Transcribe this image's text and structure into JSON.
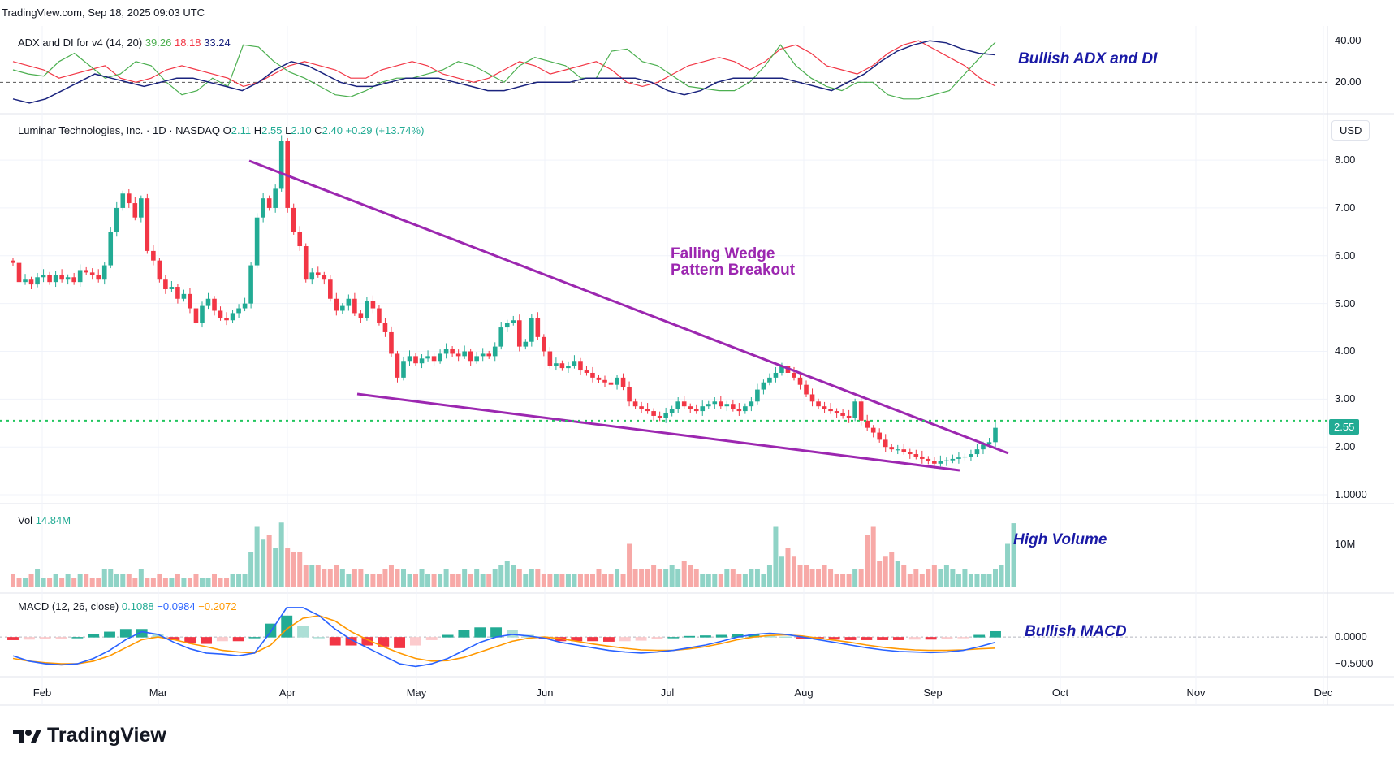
{
  "header": {
    "source_line": "TradingView.com, Sep 18, 2025 09:03 UTC"
  },
  "currency_button": "USD",
  "branding": {
    "logo_text": "TradingView"
  },
  "annotations": {
    "adx": "Bullish ADX and DI",
    "wedge_line1": "Falling Wedge",
    "wedge_line2": "Pattern Breakout",
    "volume": "High Volume",
    "macd": "Bullish MACD"
  },
  "legends": {
    "adx": {
      "label": "ADX and DI for v4 (14, 20)",
      "plus_di": "39.26",
      "minus_di": "18.18",
      "adx": "33.24"
    },
    "price": {
      "title": "Luminar Technologies, Inc. · 1D · NASDAQ",
      "open_label": "O",
      "open": "2.11",
      "high_label": "H",
      "high": "2.55",
      "low_label": "L",
      "low": "2.10",
      "close_label": "C",
      "close": "2.40",
      "change": "+0.29 (+13.74%)"
    },
    "volume": {
      "label": "Vol",
      "value": "14.84M"
    },
    "macd": {
      "label": "MACD (12, 26, close)",
      "histogram": "0.1088",
      "macd": "−0.0984",
      "signal": "−0.2072"
    }
  },
  "price_tag": "2.55",
  "colors": {
    "up": "#22ab94",
    "down": "#f23645",
    "wedge": "#9c27b0",
    "annotation": "#1a1aa6",
    "grid": "#f0f3fa"
  },
  "chart_data": [
    {
      "type": "candlestick",
      "pane": "price",
      "x_ticks": [
        "Feb",
        "Mar",
        "Apr",
        "May",
        "Jun",
        "Jul",
        "Aug",
        "Sep",
        "Oct",
        "Nov",
        "Dec"
      ],
      "y_ticks": [
        "8.00",
        "7.00",
        "6.00",
        "5.00",
        "4.00",
        "3.00",
        "2.00",
        "1.0000"
      ],
      "ylim": [
        0.95,
        8.8
      ],
      "xlim_days": [
        0,
        290
      ],
      "start_label": "Feb",
      "closes": [
        5.85,
        5.45,
        5.5,
        5.4,
        5.55,
        5.6,
        5.45,
        5.6,
        5.5,
        5.55,
        5.45,
        5.7,
        5.65,
        5.6,
        5.5,
        5.8,
        6.5,
        7.0,
        7.3,
        7.1,
        6.8,
        7.2,
        6.1,
        5.9,
        5.5,
        5.3,
        5.35,
        5.1,
        5.2,
        4.9,
        4.6,
        4.95,
        5.1,
        4.85,
        4.7,
        4.65,
        4.8,
        4.9,
        5.0,
        5.8,
        6.8,
        7.2,
        7.0,
        7.4,
        8.4,
        7.0,
        6.5,
        6.2,
        5.5,
        5.65,
        5.6,
        5.5,
        5.1,
        4.85,
        4.95,
        5.1,
        4.8,
        4.7,
        5.05,
        4.9,
        4.6,
        4.4,
        3.95,
        3.45,
        3.8,
        3.9,
        3.75,
        3.85,
        3.9,
        3.8,
        3.95,
        4.05,
        3.95,
        3.9,
        4.0,
        3.8,
        3.9,
        3.95,
        3.9,
        4.1,
        4.5,
        4.6,
        4.65,
        4.1,
        4.2,
        4.7,
        4.3,
        4.0,
        3.7,
        3.75,
        3.65,
        3.7,
        3.8,
        3.6,
        3.55,
        3.45,
        3.4,
        3.35,
        3.3,
        3.45,
        3.25,
        2.95,
        2.85,
        2.8,
        2.75,
        2.65,
        2.6,
        2.7,
        2.8,
        2.95,
        2.85,
        2.8,
        2.75,
        2.85,
        2.9,
        2.95,
        2.85,
        2.9,
        2.8,
        2.75,
        2.85,
        2.95,
        3.2,
        3.35,
        3.45,
        3.55,
        3.7,
        3.55,
        3.45,
        3.3,
        3.1,
        2.95,
        2.85,
        2.8,
        2.75,
        2.7,
        2.65,
        2.6,
        2.95,
        2.55,
        2.4,
        2.3,
        2.15,
        2.0,
        1.95,
        1.95,
        1.9,
        1.85,
        1.8,
        1.75,
        1.7,
        1.65,
        1.7,
        1.72,
        1.75,
        1.78,
        1.8,
        1.85,
        1.95,
        2.05,
        2.1,
        2.4
      ]
    },
    {
      "type": "bar",
      "pane": "volume",
      "y_ticks": [
        "10M"
      ],
      "values_m": [
        3,
        2,
        2,
        3,
        4,
        2,
        2,
        3,
        2,
        3,
        2,
        3,
        3,
        2,
        2,
        4,
        4,
        3,
        3,
        3,
        2,
        4,
        2,
        2,
        3,
        2,
        2,
        3,
        2,
        2,
        3,
        2,
        2,
        3,
        2,
        2,
        3,
        3,
        3,
        8,
        14,
        11,
        12,
        9,
        15,
        9,
        8,
        8,
        5,
        5,
        5,
        4,
        4,
        5,
        4,
        3,
        4,
        4,
        3,
        3,
        3,
        4,
        5,
        4,
        4,
        3,
        3,
        4,
        3,
        3,
        3,
        4,
        3,
        3,
        4,
        3,
        4,
        3,
        3,
        4,
        5,
        6,
        5,
        4,
        3,
        4,
        4,
        3,
        3,
        3,
        3,
        3,
        3,
        3,
        3,
        3,
        4,
        3,
        3,
        4,
        3,
        10,
        4,
        4,
        4,
        5,
        4,
        4,
        5,
        4,
        6,
        5,
        4,
        3,
        3,
        3,
        3,
        4,
        4,
        3,
        3,
        4,
        4,
        3,
        5,
        14,
        7,
        9,
        7,
        5,
        5,
        4,
        4,
        5,
        4,
        3,
        3,
        3,
        4,
        4,
        12,
        14,
        6,
        7,
        8,
        6,
        5,
        3,
        4,
        3,
        4,
        5,
        4,
        5,
        4,
        3,
        4,
        3,
        3,
        3,
        3,
        4,
        5,
        10,
        14.84
      ]
    },
    {
      "type": "histogram+line",
      "pane": "macd",
      "y_ticks": [
        "0.0000",
        "−0.5000"
      ],
      "macd_series": [
        -0.35,
        -0.45,
        -0.5,
        -0.52,
        -0.5,
        -0.4,
        -0.25,
        -0.05,
        0.1,
        0.05,
        -0.1,
        -0.22,
        -0.3,
        -0.32,
        -0.35,
        -0.3,
        0.1,
        0.55,
        0.55,
        0.4,
        0.15,
        -0.05,
        -0.2,
        -0.35,
        -0.5,
        -0.55,
        -0.5,
        -0.4,
        -0.25,
        -0.1,
        0.0,
        0.05,
        0.02,
        -0.02,
        -0.1,
        -0.15,
        -0.2,
        -0.25,
        -0.28,
        -0.3,
        -0.28,
        -0.25,
        -0.2,
        -0.15,
        -0.08,
        0.0,
        0.05,
        0.07,
        0.05,
        0.0,
        -0.05,
        -0.1,
        -0.15,
        -0.2,
        -0.24,
        -0.27,
        -0.28,
        -0.29,
        -0.28,
        -0.25,
        -0.18,
        -0.1
      ],
      "signal_series": [
        -0.4,
        -0.45,
        -0.48,
        -0.5,
        -0.5,
        -0.45,
        -0.35,
        -0.2,
        -0.05,
        0.0,
        -0.05,
        -0.12,
        -0.18,
        -0.25,
        -0.28,
        -0.3,
        -0.15,
        0.15,
        0.35,
        0.4,
        0.3,
        0.1,
        -0.05,
        -0.18,
        -0.3,
        -0.4,
        -0.45,
        -0.44,
        -0.38,
        -0.28,
        -0.18,
        -0.08,
        -0.02,
        0.0,
        -0.03,
        -0.08,
        -0.13,
        -0.17,
        -0.21,
        -0.24,
        -0.25,
        -0.25,
        -0.22,
        -0.18,
        -0.12,
        -0.05,
        0.0,
        0.03,
        0.04,
        0.02,
        -0.02,
        -0.06,
        -0.1,
        -0.15,
        -0.19,
        -0.22,
        -0.24,
        -0.25,
        -0.25,
        -0.24,
        -0.22,
        -0.2072
      ],
      "histogram_series": [
        -0.05,
        -0.04,
        -0.03,
        -0.02,
        0.0,
        0.05,
        0.1,
        0.15,
        0.15,
        0.05,
        -0.05,
        -0.1,
        -0.12,
        -0.07,
        -0.07,
        0.0,
        0.25,
        0.4,
        0.2,
        0.0,
        -0.15,
        -0.15,
        -0.15,
        -0.17,
        -0.2,
        -0.15,
        -0.05,
        0.04,
        0.13,
        0.18,
        0.18,
        0.13,
        0.04,
        -0.02,
        -0.07,
        -0.07,
        -0.07,
        -0.08,
        -0.07,
        -0.06,
        -0.03,
        0.0,
        0.02,
        0.03,
        0.04,
        0.05,
        0.05,
        0.04,
        0.01,
        -0.02,
        -0.03,
        -0.04,
        -0.05,
        -0.05,
        -0.05,
        -0.05,
        -0.04,
        -0.04,
        -0.03,
        -0.01,
        0.04,
        0.1088
      ]
    },
    {
      "type": "line",
      "pane": "adx",
      "y_ticks": [
        "40.00",
        "20.00"
      ],
      "reference_level": 20,
      "plus_di": [
        26,
        24,
        23,
        30,
        34,
        28,
        22,
        24,
        30,
        28,
        20,
        14,
        16,
        22,
        18,
        38,
        37,
        30,
        25,
        22,
        18,
        14,
        13,
        16,
        20,
        22,
        22,
        24,
        26,
        30,
        28,
        24,
        20,
        28,
        32,
        30,
        28,
        22,
        22,
        35,
        36,
        30,
        28,
        23,
        18,
        17,
        16,
        16,
        20,
        28,
        38,
        28,
        22,
        18,
        16,
        20,
        20,
        14,
        12,
        12,
        14,
        16,
        24,
        32,
        39.26
      ],
      "minus_di": [
        30,
        28,
        26,
        22,
        24,
        26,
        28,
        22,
        20,
        22,
        26,
        28,
        26,
        24,
        22,
        18,
        20,
        24,
        28,
        30,
        28,
        26,
        22,
        22,
        26,
        28,
        30,
        28,
        24,
        22,
        20,
        22,
        26,
        30,
        28,
        24,
        26,
        28,
        30,
        26,
        20,
        18,
        20,
        24,
        28,
        30,
        32,
        30,
        26,
        30,
        36,
        38,
        34,
        28,
        26,
        24,
        28,
        34,
        38,
        40,
        36,
        32,
        28,
        22,
        18.18
      ],
      "adx": [
        12,
        10,
        12,
        16,
        20,
        24,
        22,
        20,
        18,
        20,
        22,
        22,
        20,
        18,
        16,
        20,
        26,
        30,
        28,
        24,
        20,
        18,
        18,
        20,
        22,
        22,
        22,
        20,
        18,
        16,
        16,
        18,
        20,
        20,
        20,
        22,
        22,
        22,
        22,
        20,
        16,
        14,
        16,
        20,
        22,
        22,
        22,
        22,
        20,
        18,
        16,
        20,
        24,
        30,
        35,
        38,
        40,
        39,
        36,
        34,
        33.24
      ]
    }
  ]
}
